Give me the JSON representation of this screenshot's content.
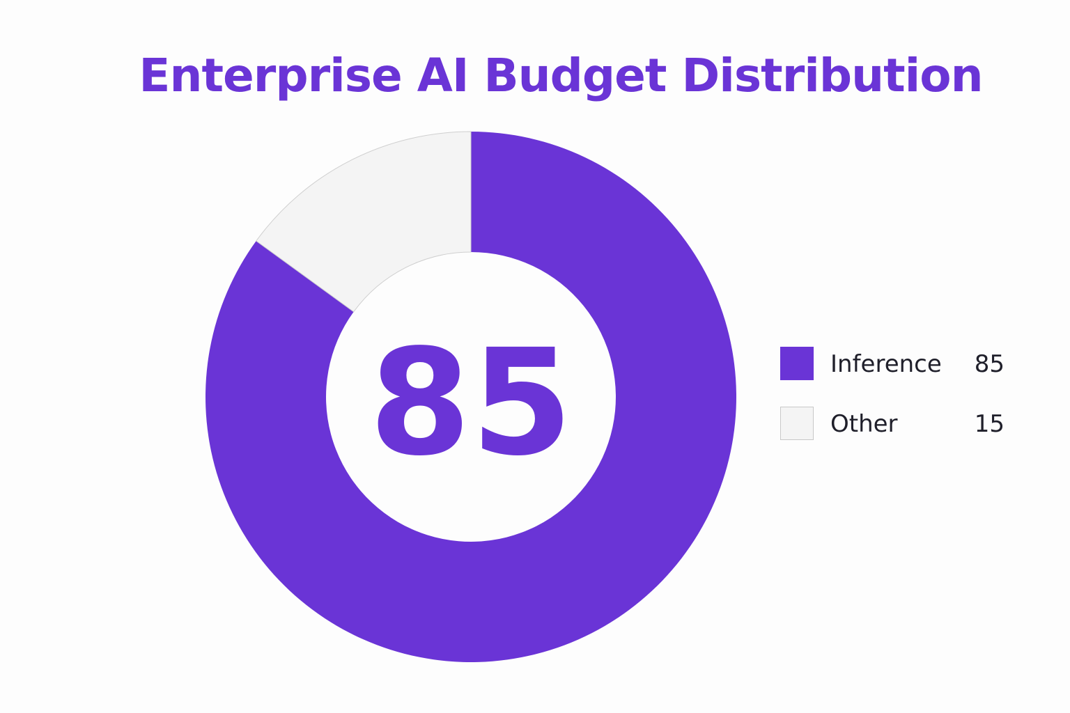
{
  "chart_data": {
    "type": "pie",
    "title": "Enterprise AI Budget Distribution",
    "center_label": "85",
    "categories": [
      "Inference",
      "Other"
    ],
    "values": [
      85,
      15
    ],
    "colors": [
      "#6a34d6",
      "#f4f4f4"
    ],
    "legend_position": "right"
  }
}
